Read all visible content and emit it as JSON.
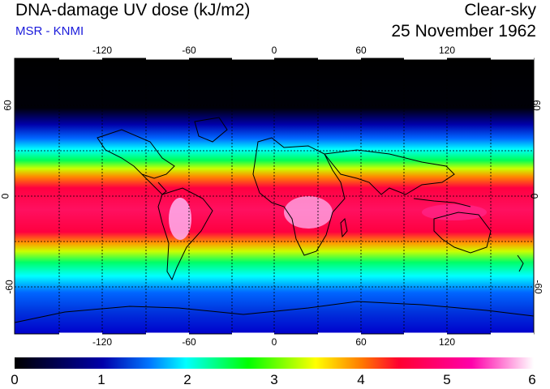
{
  "header": {
    "title": "DNA-damage UV dose (kJ/m2)",
    "subtitle": "MSR - KNMI",
    "condition": "Clear-sky",
    "date": "25 November 1962"
  },
  "map": {
    "lon_ticks": [
      "-120",
      "-60",
      "0",
      "60",
      "120"
    ],
    "lat_ticks": [
      "60",
      "0",
      "-60"
    ]
  },
  "colorbar": {
    "labels": [
      "0",
      "1",
      "2",
      "3",
      "4",
      "5",
      "6"
    ],
    "stops": [
      "#000000",
      "#0000aa",
      "#0066ff",
      "#00ffff",
      "#00ff00",
      "#ffff00",
      "#ff8800",
      "#ff0040",
      "#ff00aa",
      "#ffffff"
    ]
  },
  "colors": {
    "subtitle": "#1a1adb"
  }
}
